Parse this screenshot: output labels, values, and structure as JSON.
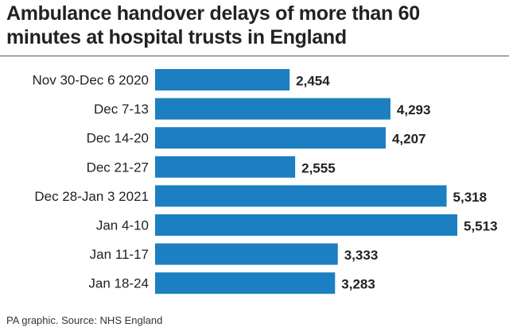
{
  "chart_data": {
    "type": "bar",
    "orientation": "horizontal",
    "title": "Ambulance handover delays of more than 60 minutes at hospital trusts in England",
    "categories": [
      "Nov 30-Dec 6 2020",
      "Dec 7-13",
      "Dec 14-20",
      "Dec 21-27",
      "Dec 28-Jan 3 2021",
      "Jan 4-10",
      "Jan 11-17",
      "Jan 18-24"
    ],
    "values": [
      2454,
      4293,
      4207,
      2555,
      5318,
      5513,
      3333,
      3283
    ],
    "value_labels": [
      "2,454",
      "4,293",
      "4,207",
      "2,555",
      "5,318",
      "5,513",
      "3,333",
      "3,283"
    ],
    "xlim": [
      0,
      5513
    ],
    "bar_color": "#1b7fc1",
    "grid": false,
    "legend": "none"
  },
  "footer": {
    "source": "PA graphic. Source: NHS England"
  }
}
